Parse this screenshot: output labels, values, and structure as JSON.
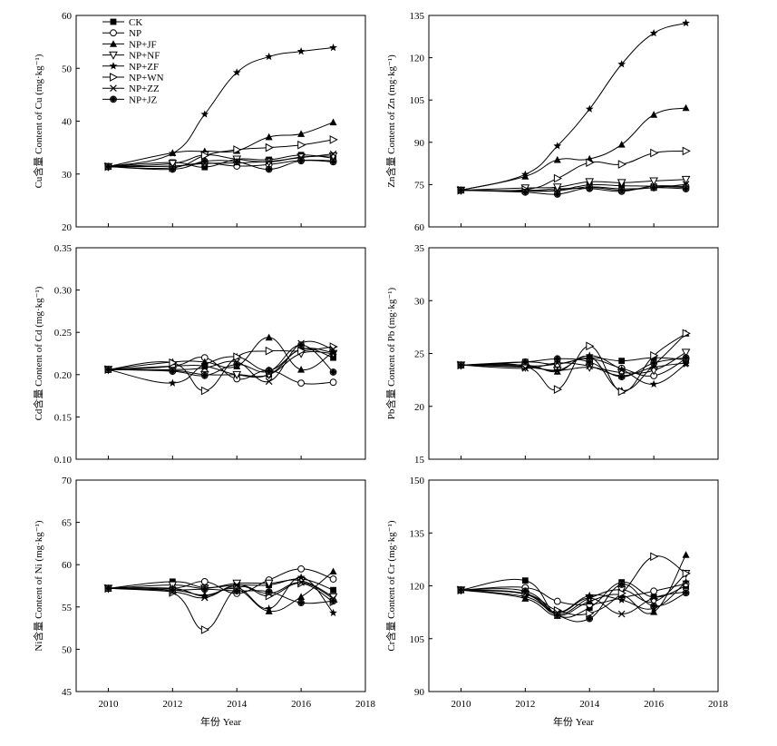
{
  "figure": {
    "xlabel": "年份 Year"
  },
  "legend": [
    {
      "name": "CK",
      "marker": "square"
    },
    {
      "name": "NP",
      "marker": "circle-open"
    },
    {
      "name": "NP+JF",
      "marker": "triangle-up"
    },
    {
      "name": "NP+NF",
      "marker": "triangle-down-open"
    },
    {
      "name": "NP+ZF",
      "marker": "star"
    },
    {
      "name": "NP+WN",
      "marker": "triangle-right-open"
    },
    {
      "name": "NP+ZZ",
      "marker": "x"
    },
    {
      "name": "NP+JZ",
      "marker": "diamond-circle"
    }
  ],
  "chart_data": [
    {
      "type": "line",
      "panel": "cu",
      "ylabel": "Cu含量 Content of Cu (mg·kg⁻¹)",
      "xlim": [
        2009,
        2018
      ],
      "ylim": [
        20,
        60
      ],
      "xticks": [
        "2010",
        "2012",
        "2014",
        "2016",
        "2018"
      ],
      "yticks": [
        "20",
        "30",
        "40",
        "50",
        "60"
      ],
      "x": [
        2010,
        2012,
        2013,
        2014,
        2015,
        2016,
        2017
      ],
      "series": [
        {
          "name": "CK",
          "values": [
            31.4,
            32.2,
            31.3,
            32.8,
            32.7,
            33.6,
            33.0
          ]
        },
        {
          "name": "NP",
          "values": [
            31.4,
            31.5,
            32.1,
            31.5,
            31.8,
            32.6,
            32.5
          ]
        },
        {
          "name": "NP+JF",
          "values": [
            31.4,
            34.0,
            34.3,
            34.4,
            37.0,
            37.6,
            39.8
          ]
        },
        {
          "name": "NP+NF",
          "values": [
            31.4,
            32.0,
            33.6,
            32.8,
            32.3,
            33.2,
            33.4
          ]
        },
        {
          "name": "NP+ZF",
          "values": [
            31.4,
            33.9,
            41.3,
            49.2,
            52.2,
            53.2,
            53.9
          ]
        },
        {
          "name": "NP+WN",
          "values": [
            31.4,
            31.2,
            33.5,
            34.6,
            35.0,
            35.5,
            36.5
          ]
        },
        {
          "name": "NP+ZZ",
          "values": [
            31.4,
            31.5,
            32.0,
            32.1,
            32.4,
            33.1,
            33.8
          ]
        },
        {
          "name": "NP+JZ",
          "values": [
            31.4,
            30.9,
            32.4,
            32.3,
            30.9,
            32.5,
            32.3
          ]
        }
      ]
    },
    {
      "type": "line",
      "panel": "zn",
      "ylabel": "Zn含量 Content of Zn (mg·kg⁻¹)",
      "xlim": [
        2009,
        2018
      ],
      "ylim": [
        60,
        135
      ],
      "xticks": [
        "2010",
        "2012",
        "2014",
        "2016",
        "2018"
      ],
      "yticks": [
        "60",
        "75",
        "90",
        "105",
        "120",
        "135"
      ],
      "x": [
        2010,
        2012,
        2013,
        2014,
        2015,
        2016,
        2017
      ],
      "series": [
        {
          "name": "CK",
          "values": [
            73.0,
            72.8,
            73.0,
            74.9,
            74.6,
            74.4,
            74.0
          ]
        },
        {
          "name": "NP",
          "values": [
            73.0,
            72.9,
            73.5,
            73.6,
            72.6,
            74.5,
            74.3
          ]
        },
        {
          "name": "NP+JF",
          "values": [
            73.0,
            77.9,
            83.8,
            84.1,
            89.2,
            99.8,
            102.2
          ]
        },
        {
          "name": "NP+NF",
          "values": [
            73.0,
            73.8,
            74.1,
            76.0,
            75.7,
            76.3,
            76.8
          ]
        },
        {
          "name": "NP+ZF",
          "values": [
            73.0,
            78.6,
            88.7,
            101.8,
            117.7,
            128.7,
            132.3
          ]
        },
        {
          "name": "NP+WN",
          "values": [
            73.0,
            73.2,
            77.2,
            82.8,
            82.2,
            86.2,
            86.9
          ]
        },
        {
          "name": "NP+ZZ",
          "values": [
            73.0,
            72.7,
            72.8,
            74.2,
            73.5,
            73.9,
            75.1
          ]
        },
        {
          "name": "NP+JZ",
          "values": [
            73.0,
            72.3,
            71.6,
            73.9,
            73.0,
            73.9,
            73.5
          ]
        }
      ]
    },
    {
      "type": "line",
      "panel": "cd",
      "ylabel": "Cd含量 Content of Cd (mg·kg⁻¹)",
      "xlim": [
        2009,
        2018
      ],
      "ylim": [
        0.1,
        0.35
      ],
      "xticks": [
        "2010",
        "2012",
        "2014",
        "2016",
        "2018"
      ],
      "yticks": [
        "0.10",
        "0.15",
        "0.20",
        "0.25",
        "0.30",
        "0.35"
      ],
      "x": [
        2010,
        2012,
        2013,
        2014,
        2015,
        2016,
        2017
      ],
      "series": [
        {
          "name": "CK",
          "values": [
            0.206,
            0.21,
            0.21,
            0.2,
            0.2,
            0.23,
            0.22
          ]
        },
        {
          "name": "NP",
          "values": [
            0.206,
            0.21,
            0.22,
            0.195,
            0.205,
            0.19,
            0.191
          ]
        },
        {
          "name": "NP+JF",
          "values": [
            0.206,
            0.215,
            0.215,
            0.21,
            0.244,
            0.206,
            0.227
          ]
        },
        {
          "name": "NP+NF",
          "values": [
            0.206,
            0.205,
            0.2,
            0.2,
            0.2,
            0.225,
            0.225
          ]
        },
        {
          "name": "NP+ZF",
          "values": [
            0.206,
            0.19,
            0.212,
            0.221,
            0.205,
            0.23,
            0.226
          ]
        },
        {
          "name": "NP+WN",
          "values": [
            0.206,
            0.214,
            0.181,
            0.221,
            0.228,
            0.228,
            0.233
          ]
        },
        {
          "name": "NP+ZZ",
          "values": [
            0.206,
            0.206,
            0.208,
            0.215,
            0.192,
            0.237,
            0.23
          ]
        },
        {
          "name": "NP+JZ",
          "values": [
            0.206,
            0.204,
            0.199,
            0.212,
            0.204,
            0.235,
            0.203
          ]
        }
      ]
    },
    {
      "type": "line",
      "panel": "pb",
      "ylabel": "Pb含量 Content of Pb (mg·kg⁻¹)",
      "xlim": [
        2009,
        2018
      ],
      "ylim": [
        15,
        35
      ],
      "xticks": [
        "2010",
        "2012",
        "2014",
        "2016",
        "2018"
      ],
      "yticks": [
        "15",
        "20",
        "25",
        "30",
        "35"
      ],
      "x": [
        2010,
        2012,
        2013,
        2014,
        2015,
        2016,
        2017
      ],
      "series": [
        {
          "name": "CK",
          "values": [
            23.9,
            24.2,
            24.0,
            24.6,
            24.3,
            24.6,
            24.4
          ]
        },
        {
          "name": "NP",
          "values": [
            23.9,
            23.8,
            24.0,
            24.5,
            23.6,
            22.9,
            24.5
          ]
        },
        {
          "name": "NP+JF",
          "values": [
            23.9,
            23.9,
            23.3,
            24.7,
            21.5,
            23.9,
            26.9
          ]
        },
        {
          "name": "NP+NF",
          "values": [
            23.9,
            23.7,
            23.4,
            23.7,
            23.2,
            23.4,
            25.1
          ]
        },
        {
          "name": "NP+ZF",
          "values": [
            23.9,
            23.8,
            23.4,
            24.8,
            23.5,
            22.1,
            24.0
          ]
        },
        {
          "name": "NP+WN",
          "values": [
            23.9,
            23.8,
            21.6,
            25.7,
            21.4,
            24.8,
            26.9
          ]
        },
        {
          "name": "NP+ZZ",
          "values": [
            23.9,
            23.6,
            24.1,
            23.8,
            22.9,
            23.7,
            24.1
          ]
        },
        {
          "name": "NP+JZ",
          "values": [
            23.9,
            24.2,
            24.5,
            24.2,
            22.8,
            24.1,
            24.6
          ]
        }
      ]
    },
    {
      "type": "line",
      "panel": "ni",
      "ylabel": "Ni含量 Content of Ni (mg·kg⁻¹)",
      "xlim": [
        2009,
        2018
      ],
      "ylim": [
        45,
        70
      ],
      "xticks": [
        "2010",
        "2012",
        "2014",
        "2016",
        "2018"
      ],
      "yticks": [
        "45",
        "50",
        "55",
        "60",
        "65",
        "70"
      ],
      "x": [
        2010,
        2012,
        2013,
        2014,
        2015,
        2016,
        2017
      ],
      "series": [
        {
          "name": "CK",
          "values": [
            57.2,
            58.0,
            57.3,
            57.6,
            57.6,
            58.3,
            57.0
          ]
        },
        {
          "name": "NP",
          "values": [
            57.2,
            57.2,
            58.0,
            56.6,
            58.2,
            59.5,
            58.3
          ]
        },
        {
          "name": "NP+JF",
          "values": [
            57.2,
            57.0,
            56.4,
            57.1,
            54.5,
            56.2,
            59.2
          ]
        },
        {
          "name": "NP+NF",
          "values": [
            57.2,
            57.6,
            57.2,
            57.8,
            57.8,
            58.1,
            56.2
          ]
        },
        {
          "name": "NP+ZF",
          "values": [
            57.2,
            57.2,
            56.3,
            57.3,
            54.8,
            58.5,
            54.3
          ]
        },
        {
          "name": "NP+WN",
          "values": [
            57.2,
            56.7,
            52.3,
            57.2,
            56.3,
            57.8,
            55.6
          ]
        },
        {
          "name": "NP+ZZ",
          "values": [
            57.2,
            56.8,
            56.1,
            57.6,
            56.6,
            57.9,
            56.0
          ]
        },
        {
          "name": "NP+JZ",
          "values": [
            57.2,
            57.0,
            57.1,
            56.9,
            56.8,
            55.5,
            55.7
          ]
        }
      ]
    },
    {
      "type": "line",
      "panel": "cr",
      "ylabel": "Cr含量 Content of Cr (mg·kg⁻¹)",
      "xlim": [
        2009,
        2018
      ],
      "ylim": [
        90,
        150
      ],
      "xticks": [
        "2010",
        "2012",
        "2014",
        "2016",
        "2018"
      ],
      "yticks": [
        "90",
        "105",
        "120",
        "135",
        "150"
      ],
      "x": [
        2010,
        2012,
        2013,
        2014,
        2015,
        2016,
        2017
      ],
      "series": [
        {
          "name": "CK",
          "values": [
            118.8,
            121.5,
            111.6,
            113.8,
            121.0,
            116.8,
            120.0
          ]
        },
        {
          "name": "NP",
          "values": [
            118.8,
            119.5,
            115.6,
            114.7,
            116.6,
            118.5,
            120.6
          ]
        },
        {
          "name": "NP+JF",
          "values": [
            118.8,
            116.4,
            111.5,
            115.6,
            117.4,
            112.6,
            128.8
          ]
        },
        {
          "name": "NP+NF",
          "values": [
            118.8,
            117.6,
            111.9,
            116.5,
            118.9,
            115.5,
            123.5
          ]
        },
        {
          "name": "NP+ZF",
          "values": [
            118.8,
            116.9,
            112.5,
            117.2,
            116.0,
            113.6,
            121.1
          ]
        },
        {
          "name": "NP+WN",
          "values": [
            118.8,
            117.7,
            113.0,
            112.2,
            117.9,
            128.3,
            123.5
          ]
        },
        {
          "name": "NP+ZZ",
          "values": [
            118.8,
            117.8,
            112.4,
            116.5,
            112.0,
            116.6,
            118.3
          ]
        },
        {
          "name": "NP+JZ",
          "values": [
            118.8,
            118.5,
            111.7,
            110.7,
            120.4,
            114.3,
            118.0
          ]
        }
      ]
    }
  ]
}
